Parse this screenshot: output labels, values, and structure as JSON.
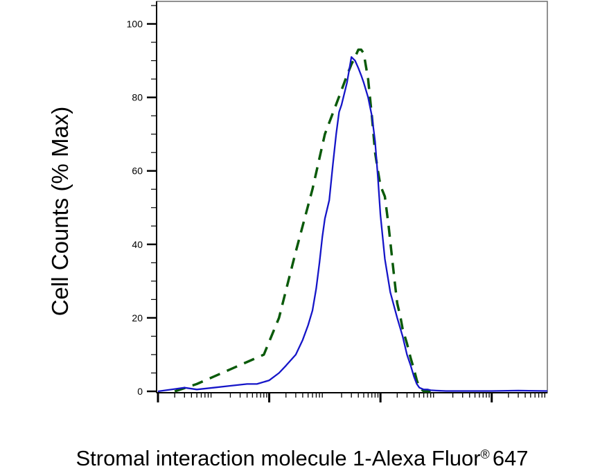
{
  "chart_data": {
    "type": "line",
    "title": "",
    "ylabel": "Cell Counts (% Max)",
    "xlabel": "Stromal interaction molecule 1-Alexa Fluor",
    "xlabel_mark": "®",
    "xlabel_suffix": "647",
    "x_scale": "log",
    "xlim": [
      1,
      10000000
    ],
    "ylim": [
      0,
      105
    ],
    "yticks": [
      0,
      20,
      40,
      60,
      80,
      100
    ],
    "ytick_labels": [
      "0",
      "20",
      "40",
      "60",
      "80",
      "100"
    ],
    "grid": false,
    "legend": "none",
    "series": [
      {
        "style": "dashed",
        "color": "#0a5a0a",
        "x": [
          2,
          5,
          10,
          20,
          40,
          80,
          150,
          300,
          600,
          1000,
          1500,
          2000,
          2500,
          3000,
          3500,
          4000,
          4500,
          5000,
          6000,
          7000,
          8000,
          9000,
          10000,
          12000,
          14000,
          16000,
          18000,
          20000,
          23000,
          25000,
          30000,
          35000,
          40000,
          45000,
          50000,
          55000,
          60000,
          70000,
          80000
        ],
        "y": [
          0,
          2,
          4,
          6,
          8,
          10,
          20,
          38,
          55,
          70,
          77,
          82,
          86,
          89,
          91,
          93,
          93,
          92,
          85,
          75,
          65,
          60,
          56,
          53,
          45,
          37,
          30,
          24,
          20,
          17,
          13,
          9,
          6,
          3,
          1,
          0.5,
          0,
          0,
          0
        ]
      },
      {
        "style": "solid",
        "color": "#1515c8",
        "x": [
          1,
          3,
          5,
          10,
          20,
          40,
          60,
          100,
          150,
          200,
          300,
          400,
          500,
          600,
          700,
          800,
          900,
          1000,
          1200,
          1400,
          1600,
          1800,
          2000,
          2500,
          3000,
          3500,
          4000,
          4500,
          5000,
          6000,
          7000,
          8000,
          9000,
          10000,
          12000,
          15000,
          20000,
          25000,
          30000,
          35000,
          40000,
          45000,
          50000,
          60000,
          70000,
          80000,
          100000,
          150000,
          300000,
          1000000,
          3000000,
          10000000
        ],
        "y": [
          0,
          1,
          0.5,
          1,
          1.5,
          2,
          2,
          3,
          5,
          7,
          10,
          14,
          18,
          22,
          28,
          35,
          42,
          47,
          52,
          62,
          70,
          76,
          78,
          84,
          91,
          90,
          88,
          86,
          84,
          80,
          75,
          68,
          58,
          48,
          36,
          27,
          20,
          15,
          10,
          7,
          4,
          2,
          1,
          0.5,
          0.5,
          0.3,
          0.2,
          0.1,
          0.1,
          0.1,
          0.2,
          0.1
        ]
      }
    ]
  }
}
